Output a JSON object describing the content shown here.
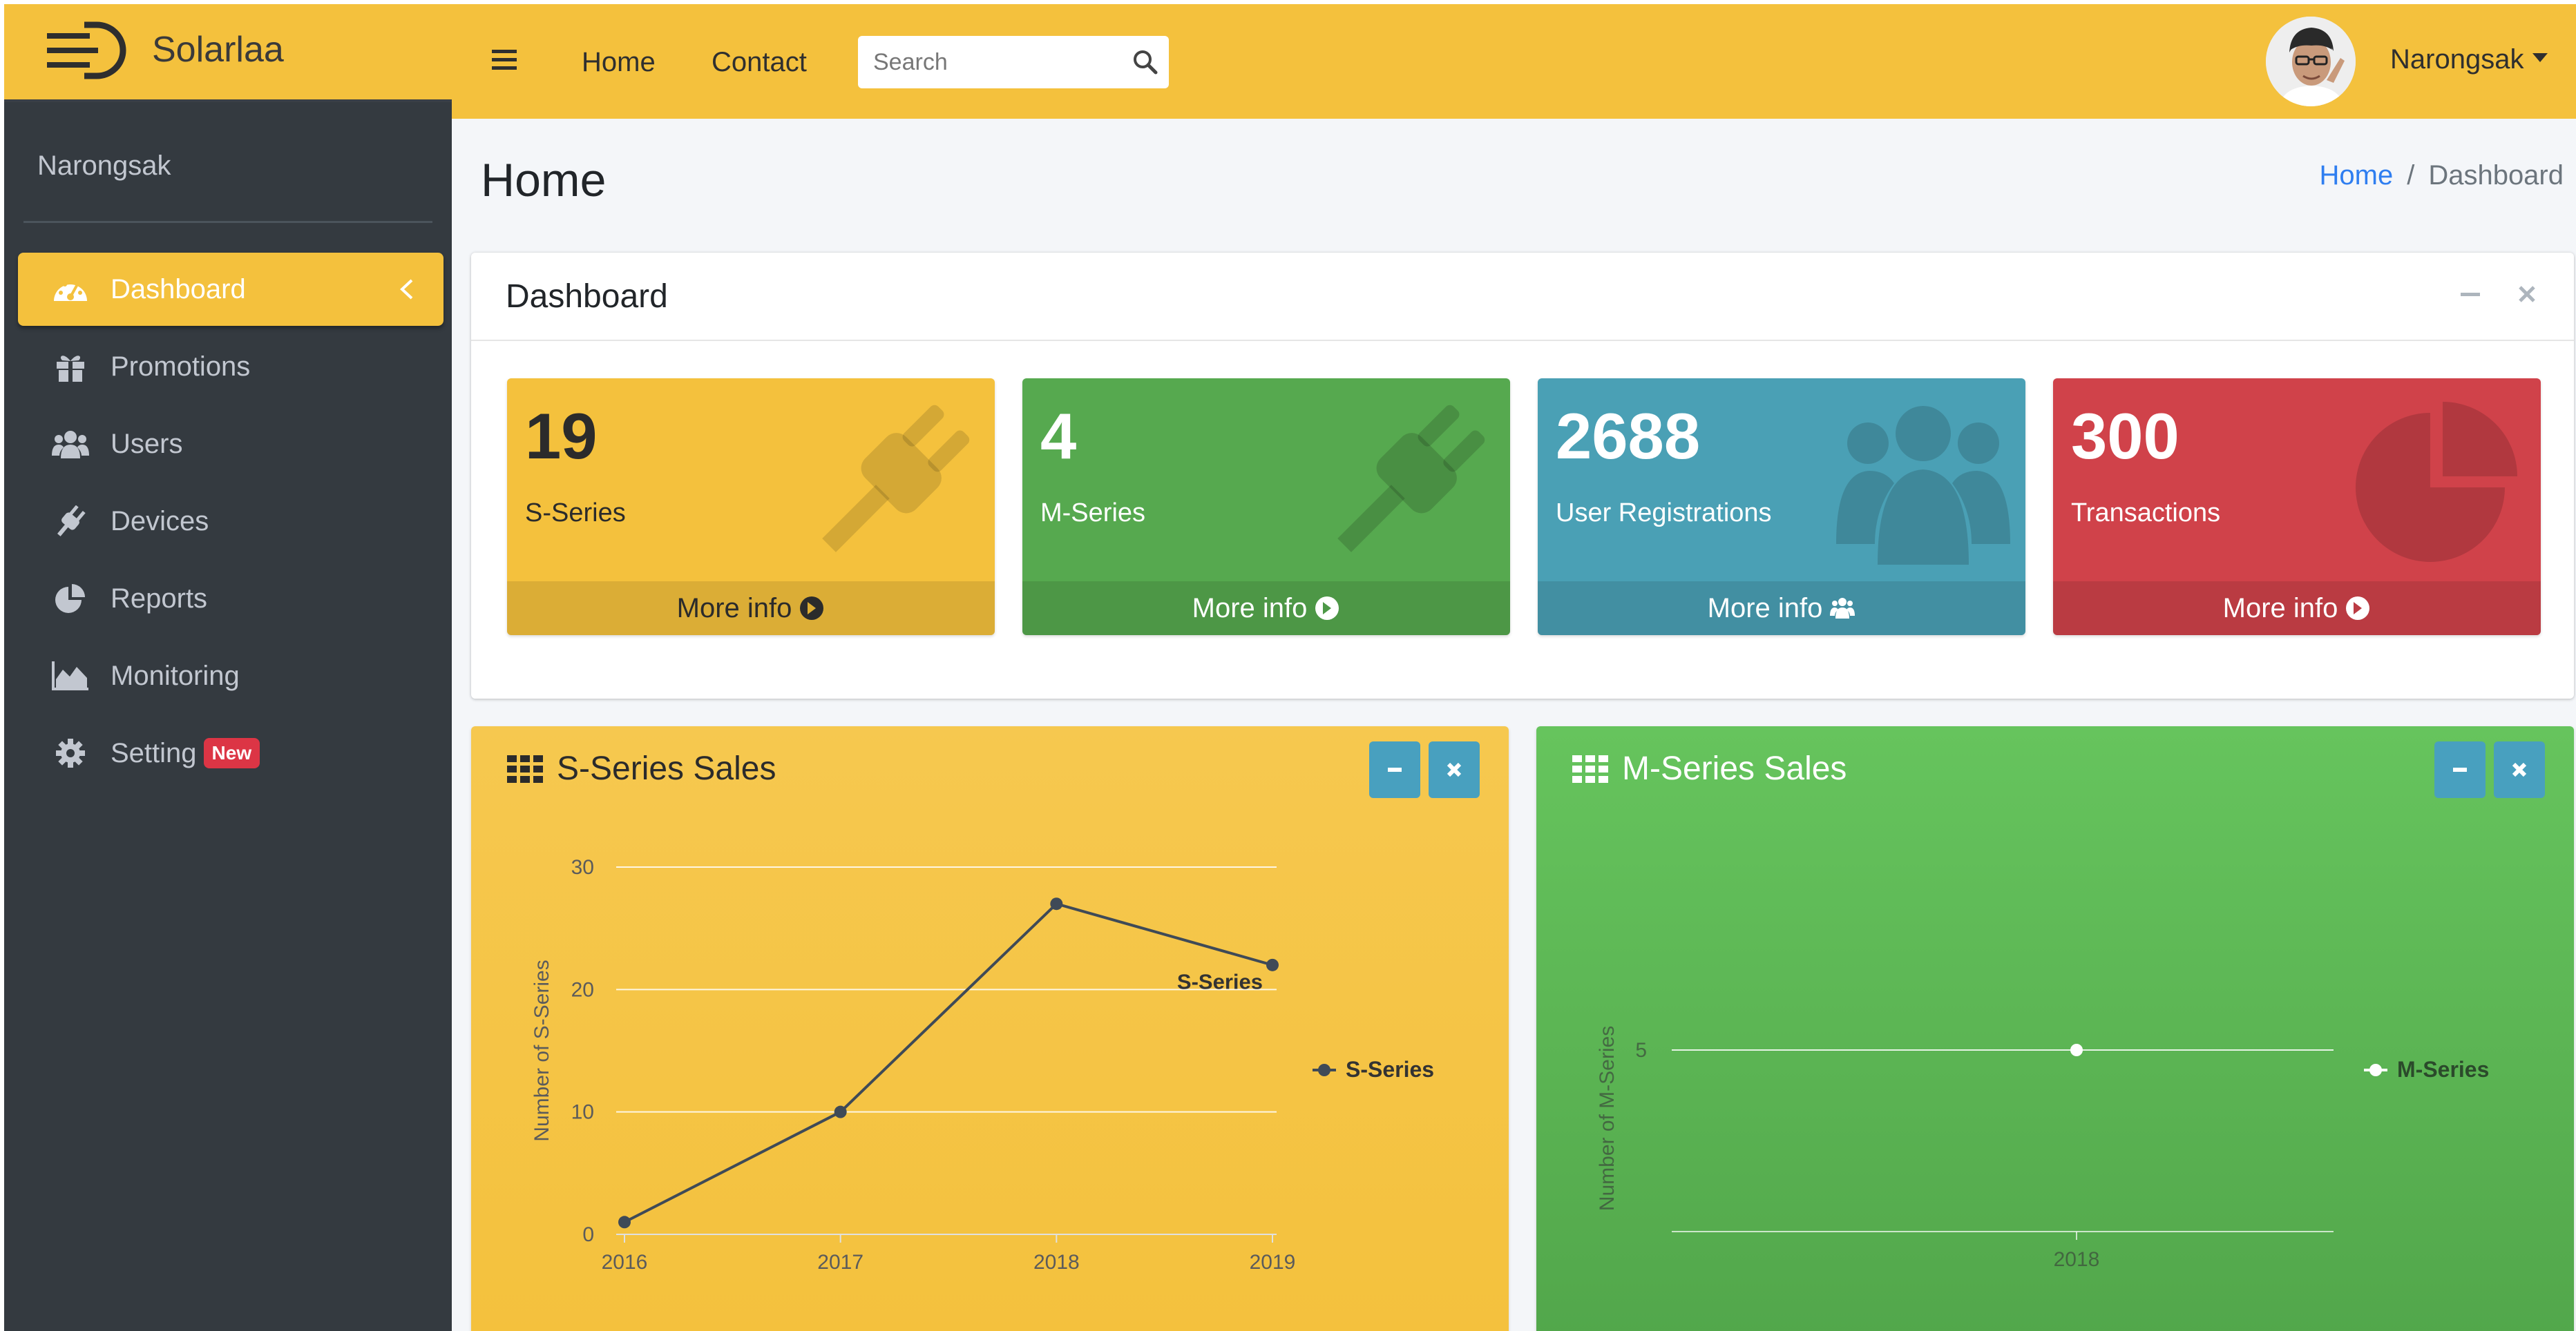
{
  "brand": {
    "name": "Solarlaa"
  },
  "sidebar": {
    "user": "Narongsak",
    "items": [
      {
        "label": "Dashboard",
        "icon": "tachometer-icon",
        "active": true
      },
      {
        "label": "Promotions",
        "icon": "gift-icon"
      },
      {
        "label": "Users",
        "icon": "users-icon"
      },
      {
        "label": "Devices",
        "icon": "plug-icon"
      },
      {
        "label": "Reports",
        "icon": "pie-chart-icon"
      },
      {
        "label": "Monitoring",
        "icon": "area-chart-icon"
      },
      {
        "label": "Setting",
        "icon": "gear-icon",
        "badge": "New"
      }
    ]
  },
  "navbar": {
    "links": [
      "Home",
      "Contact"
    ],
    "search_placeholder": "Search",
    "user": "Narongsak"
  },
  "header": {
    "title": "Home",
    "breadcrumb": [
      "Home",
      "Dashboard"
    ]
  },
  "dashboard": {
    "title": "Dashboard",
    "boxes": [
      {
        "value": "19",
        "label": "S-Series",
        "footer": "More info",
        "color": "#f4c13d",
        "icon": "plug-icon",
        "footer_icon": "arrow-circle-right-icon"
      },
      {
        "value": "4",
        "label": "M-Series",
        "footer": "More info",
        "color": "#56a94f",
        "icon": "plug-icon",
        "footer_icon": "arrow-circle-right-icon"
      },
      {
        "value": "2688",
        "label": "User Registrations",
        "footer": "More info",
        "color": "#4aa0b5",
        "icon": "users-icon",
        "footer_icon": "users-icon"
      },
      {
        "value": "300",
        "label": "Transactions",
        "footer": "More info",
        "color": "#d0424a",
        "icon": "pie-chart-icon",
        "footer_icon": "arrow-circle-right-icon"
      }
    ]
  },
  "charts": {
    "s_title": "S-Series Sales",
    "m_title": "M-Series Sales"
  },
  "chart_data": [
    {
      "type": "line",
      "title": "S-Series Sales",
      "x": [
        "2016",
        "2017",
        "2018",
        "2019"
      ],
      "series": [
        {
          "name": "S-Series",
          "values": [
            1,
            10,
            27,
            22
          ]
        }
      ],
      "ylabel": "Number of S-Series",
      "ylim": [
        0,
        30
      ],
      "yticks": [
        0,
        10,
        20,
        30
      ],
      "annotation": "S-Series",
      "legend": "right",
      "grid": true,
      "background": "#f4c13d",
      "line_color": "#3f4a57"
    },
    {
      "type": "line",
      "title": "M-Series Sales",
      "x": [
        "2018"
      ],
      "series": [
        {
          "name": "M-Series",
          "values": [
            5
          ]
        }
      ],
      "ylabel": "Number of M-Series",
      "yticks": [
        5
      ],
      "legend": "right",
      "grid": true,
      "background": "#5cb85c",
      "line_color": "#ffffff"
    }
  ]
}
